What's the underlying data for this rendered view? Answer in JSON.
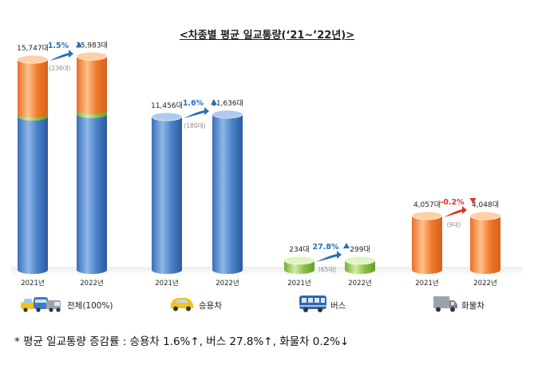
{
  "title": "<차종별 평균 일교통량(‘21~’22년)>",
  "footnote": "* 평균 일교통량 증감률 : 승용차 1.6%↑, 버스 27.8%↑, 화물차 0.2%↓",
  "colors": {
    "blue": "#4a82c8",
    "orange": "#f07b2c",
    "green": "#8cc24a",
    "up_arrow": "#2a6fb5",
    "down_arrow": "#d9381e",
    "up_text": "#2a6fb5",
    "down_text": "#d9381e"
  },
  "chart_data": {
    "type": "bar",
    "unit": "대",
    "groups": [
      {
        "category": "전체(100%)",
        "icon": "mixed-vehicles-icon",
        "years": [
          "2021년",
          "2022년"
        ],
        "values": [
          15747,
          15983
        ],
        "value_labels": [
          "15,747대",
          "15,983대"
        ],
        "stack": [
          {
            "color": "blue",
            "values": [
              11456,
              11636
            ]
          },
          {
            "color": "green",
            "values": [
              234,
              299
            ]
          },
          {
            "color": "orange",
            "values": [
              4057,
              4048
            ]
          }
        ],
        "change_pct": "1.5%",
        "change_dir": "up",
        "change_abs": "(236대)"
      },
      {
        "category": "승용차",
        "icon": "car-icon",
        "years": [
          "2021년",
          "2022년"
        ],
        "values": [
          11456,
          11636
        ],
        "value_labels": [
          "11,456대",
          "11,636대"
        ],
        "color": "blue",
        "change_pct": "1.6%",
        "change_dir": "up",
        "change_abs": "(180대)"
      },
      {
        "category": "버스",
        "icon": "bus-icon",
        "years": [
          "2021년",
          "2022년"
        ],
        "values": [
          234,
          299
        ],
        "value_labels": [
          "234대",
          "299대"
        ],
        "color": "green",
        "change_pct": "27.8%",
        "change_dir": "up",
        "change_abs": "(65대)"
      },
      {
        "category": "화물차",
        "icon": "truck-icon",
        "years": [
          "2021년",
          "2022년"
        ],
        "values": [
          4057,
          4048
        ],
        "value_labels": [
          "4,057대",
          "4,048대"
        ],
        "color": "orange",
        "change_pct": "-0.2%",
        "change_dir": "down",
        "change_abs": "(9대)"
      }
    ]
  }
}
